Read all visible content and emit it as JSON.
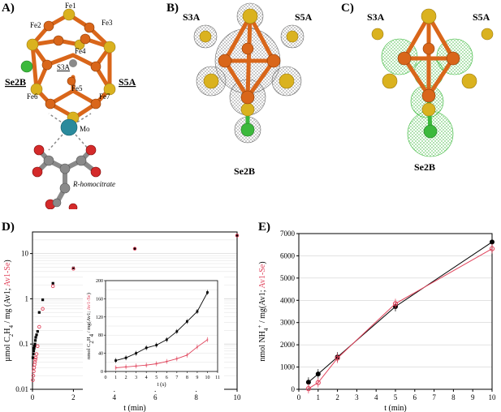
{
  "panels": {
    "A": {
      "letter": "A)",
      "fe_labels": [
        "Fe1",
        "Fe2",
        "Fe3",
        "Fe4",
        "Fe5",
        "Fe6",
        "Fe7"
      ],
      "s3a": "S3A",
      "se2b": "Se2B",
      "s5a": "S5A",
      "mo": "Mo",
      "homocitrate": "R-homocitrate"
    },
    "B": {
      "letter": "B)",
      "s3a": "S3A",
      "s5a": "S5A",
      "se2b": "Se2B"
    },
    "C": {
      "letter": "C)",
      "s3a": "S3A",
      "s5a": "S5A",
      "se2b": "Se2B"
    },
    "D": {
      "letter": "D)"
    },
    "E": {
      "letter": "E)"
    }
  },
  "colors": {
    "fe": "#d9661a",
    "s": "#dab21f",
    "se": "#3cb93c",
    "mo": "#2a8a9c",
    "c": "#9a9a9a",
    "o": "#d42a2a",
    "av1": "#000000",
    "av1se": "#e0425a"
  },
  "chart_data": [
    {
      "type": "scatter",
      "yscale": "log",
      "xlabel": "t (min)",
      "ylabel_parts": {
        "main": "µmol C",
        "sub1": "2",
        "mid": "H",
        "sub2": "4",
        "rest": " / mg (Av1; ",
        "red": "Av1-Se",
        "end": ")"
      },
      "xlim": [
        0,
        10
      ],
      "ylim": [
        0.01,
        30
      ],
      "xticks": [
        "0",
        "2",
        "4",
        "6",
        "8",
        "10"
      ],
      "yticks": [
        "0.01",
        "0.1",
        "1",
        "10"
      ],
      "series": [
        {
          "color": "#000000",
          "x": [
            0.02,
            0.04,
            0.06,
            0.08,
            0.1,
            0.12,
            0.14,
            0.16,
            0.2,
            0.25,
            0.33,
            0.5,
            1,
            2,
            5,
            10
          ],
          "y": [
            0.05,
            0.06,
            0.07,
            0.08,
            0.09,
            0.1,
            0.12,
            0.14,
            0.16,
            0.19,
            0.5,
            0.95,
            2.2,
            4.8,
            12.8,
            25
          ]
        },
        {
          "color": "#e0425a",
          "x": [
            0.02,
            0.04,
            0.06,
            0.08,
            0.1,
            0.12,
            0.14,
            0.16,
            0.2,
            0.25,
            0.33,
            0.5,
            1,
            2,
            5,
            10
          ],
          "y": [
            0.016,
            0.02,
            0.025,
            0.03,
            0.035,
            0.04,
            0.045,
            0.05,
            0.06,
            0.09,
            0.24,
            0.6,
            1.9,
            4.6,
            12.8,
            25
          ]
        }
      ],
      "inset": {
        "xlabel": "t (s)",
        "ylabel_parts": {
          "main": "nmol C",
          "sub1": "2",
          "mid": "H",
          "sub2": "4",
          "rest": " / mg(Av1; ",
          "red": "Av1-Se",
          "end": ")"
        },
        "xlim": [
          0,
          11
        ],
        "ylim": [
          0,
          200
        ],
        "xticks": [
          "0",
          "1",
          "2",
          "3",
          "4",
          "5",
          "6",
          "7",
          "8",
          "9",
          "10",
          "11"
        ],
        "yticks": [
          "0",
          "20",
          "40",
          "60",
          "80",
          "100",
          "120",
          "140",
          "160",
          "180",
          "200"
        ],
        "series": [
          {
            "color": "#000000",
            "x": [
              1,
              2,
              3,
              4,
              5,
              6,
              7,
              8,
              9,
              10
            ],
            "y": [
              24,
              30,
              40,
              52,
              58,
              70,
              88,
              110,
              132,
              174
            ]
          },
          {
            "color": "#e0425a",
            "x": [
              1,
              2,
              3,
              4,
              5,
              6,
              7,
              8,
              9,
              10
            ],
            "y": [
              8,
              10,
              12,
              14,
              17,
              22,
              28,
              36,
              54,
              70
            ]
          }
        ]
      }
    },
    {
      "type": "line",
      "xlabel": "t (min)",
      "ylabel_parts": {
        "main": "nmol NH",
        "sub1": "4",
        "sup": "+",
        "rest": " / mg(Av1; ",
        "red": "Av1-Se",
        "end": ")"
      },
      "xlim": [
        0,
        10
      ],
      "ylim": [
        0,
        7000
      ],
      "xticks": [
        "0",
        "1",
        "2",
        "3",
        "4",
        "5",
        "6",
        "7",
        "8",
        "9",
        "10"
      ],
      "yticks": [
        "0",
        "1000",
        "2000",
        "3000",
        "4000",
        "5000",
        "6000",
        "7000"
      ],
      "series": [
        {
          "color": "#000000",
          "x": [
            0.5,
            1,
            2,
            5,
            10
          ],
          "y": [
            320,
            690,
            1450,
            3720,
            6620
          ]
        },
        {
          "color": "#e0425a",
          "x": [
            0.5,
            1,
            2,
            5,
            10
          ],
          "y": [
            30,
            300,
            1400,
            3850,
            6320
          ]
        }
      ]
    }
  ]
}
